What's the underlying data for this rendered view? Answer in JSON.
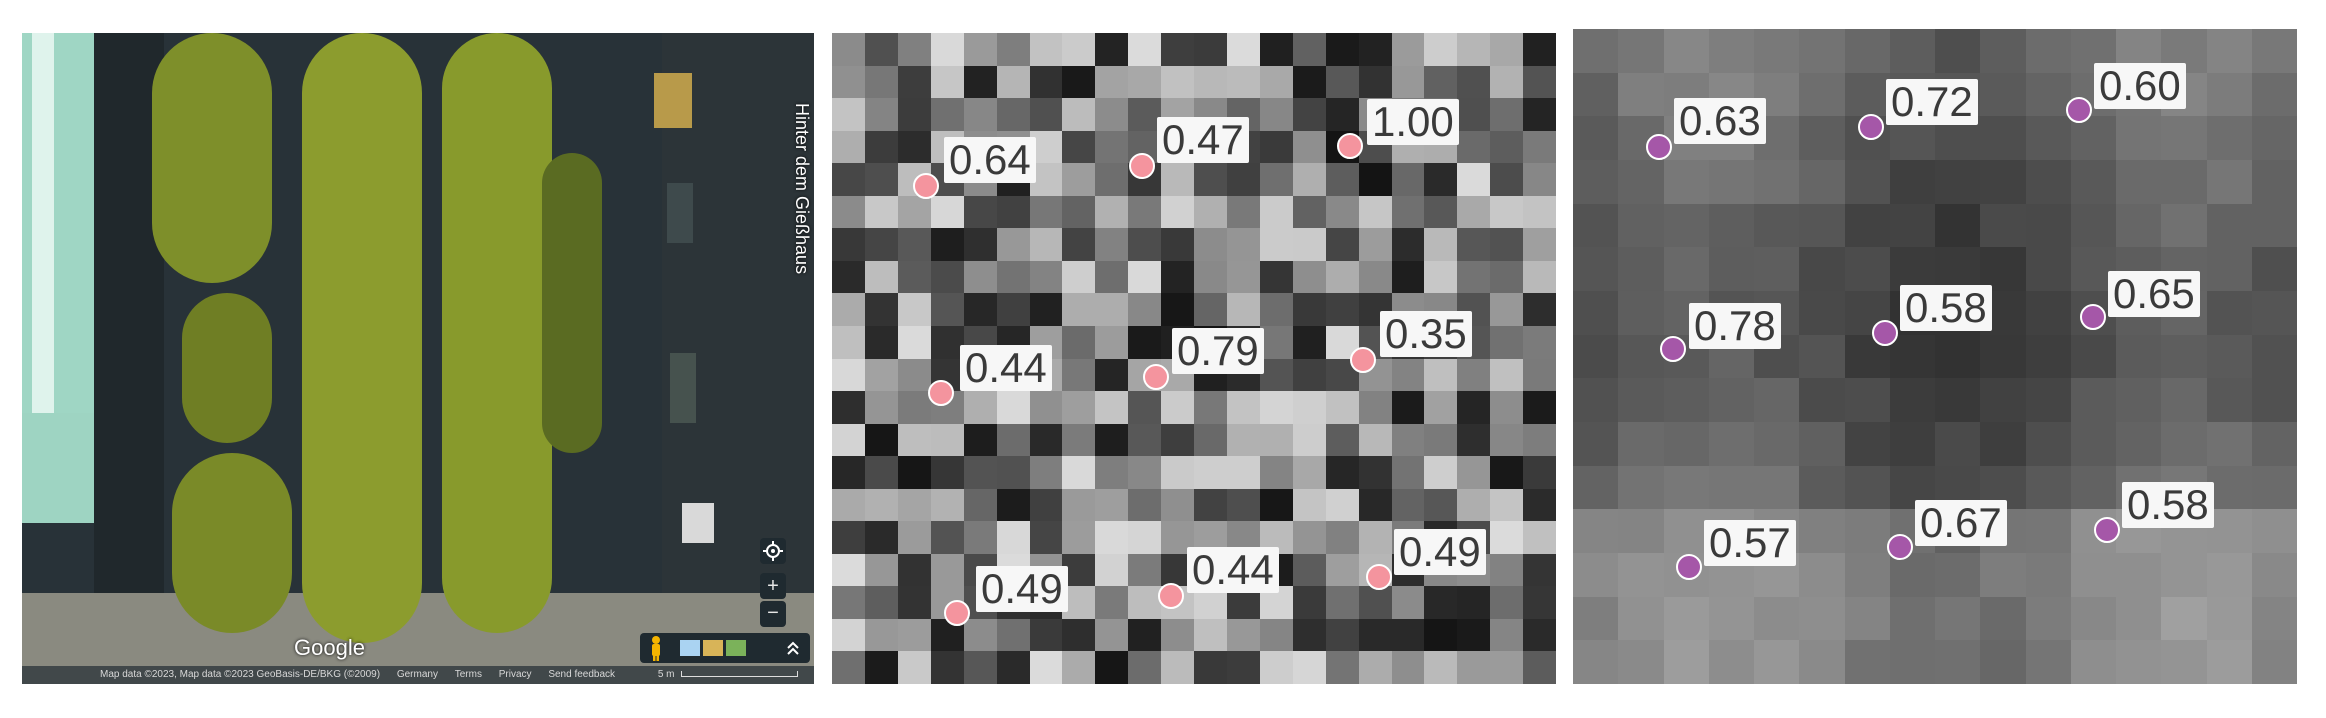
{
  "map": {
    "street_label": "Hinter dem Gießhaus",
    "google_logo": "Google",
    "attribution": "Map data ©2023, Map data ©2023 GeoBasis-DE/BKG (©2009)",
    "country": "Germany",
    "terms": "Terms",
    "privacy": "Privacy",
    "feedback": "Send feedback",
    "scale_label": "5 m",
    "zoom_in": "+",
    "zoom_out": "−",
    "locate_icon": "crosshair-icon",
    "pegman_icon": "pegman-icon",
    "expand_icon": "chevron-up-icon"
  },
  "grid_left": {
    "marker_color": "#f4949e",
    "labels": [
      "0.64",
      "0.47",
      "1.00",
      "0.44",
      "0.79",
      "0.35",
      "0.49",
      "0.44",
      "0.49"
    ]
  },
  "grid_right": {
    "marker_color": "#a557a8",
    "labels": [
      "0.63",
      "0.72",
      "0.60",
      "0.78",
      "0.58",
      "0.65",
      "0.57",
      "0.67",
      "0.58"
    ]
  }
}
